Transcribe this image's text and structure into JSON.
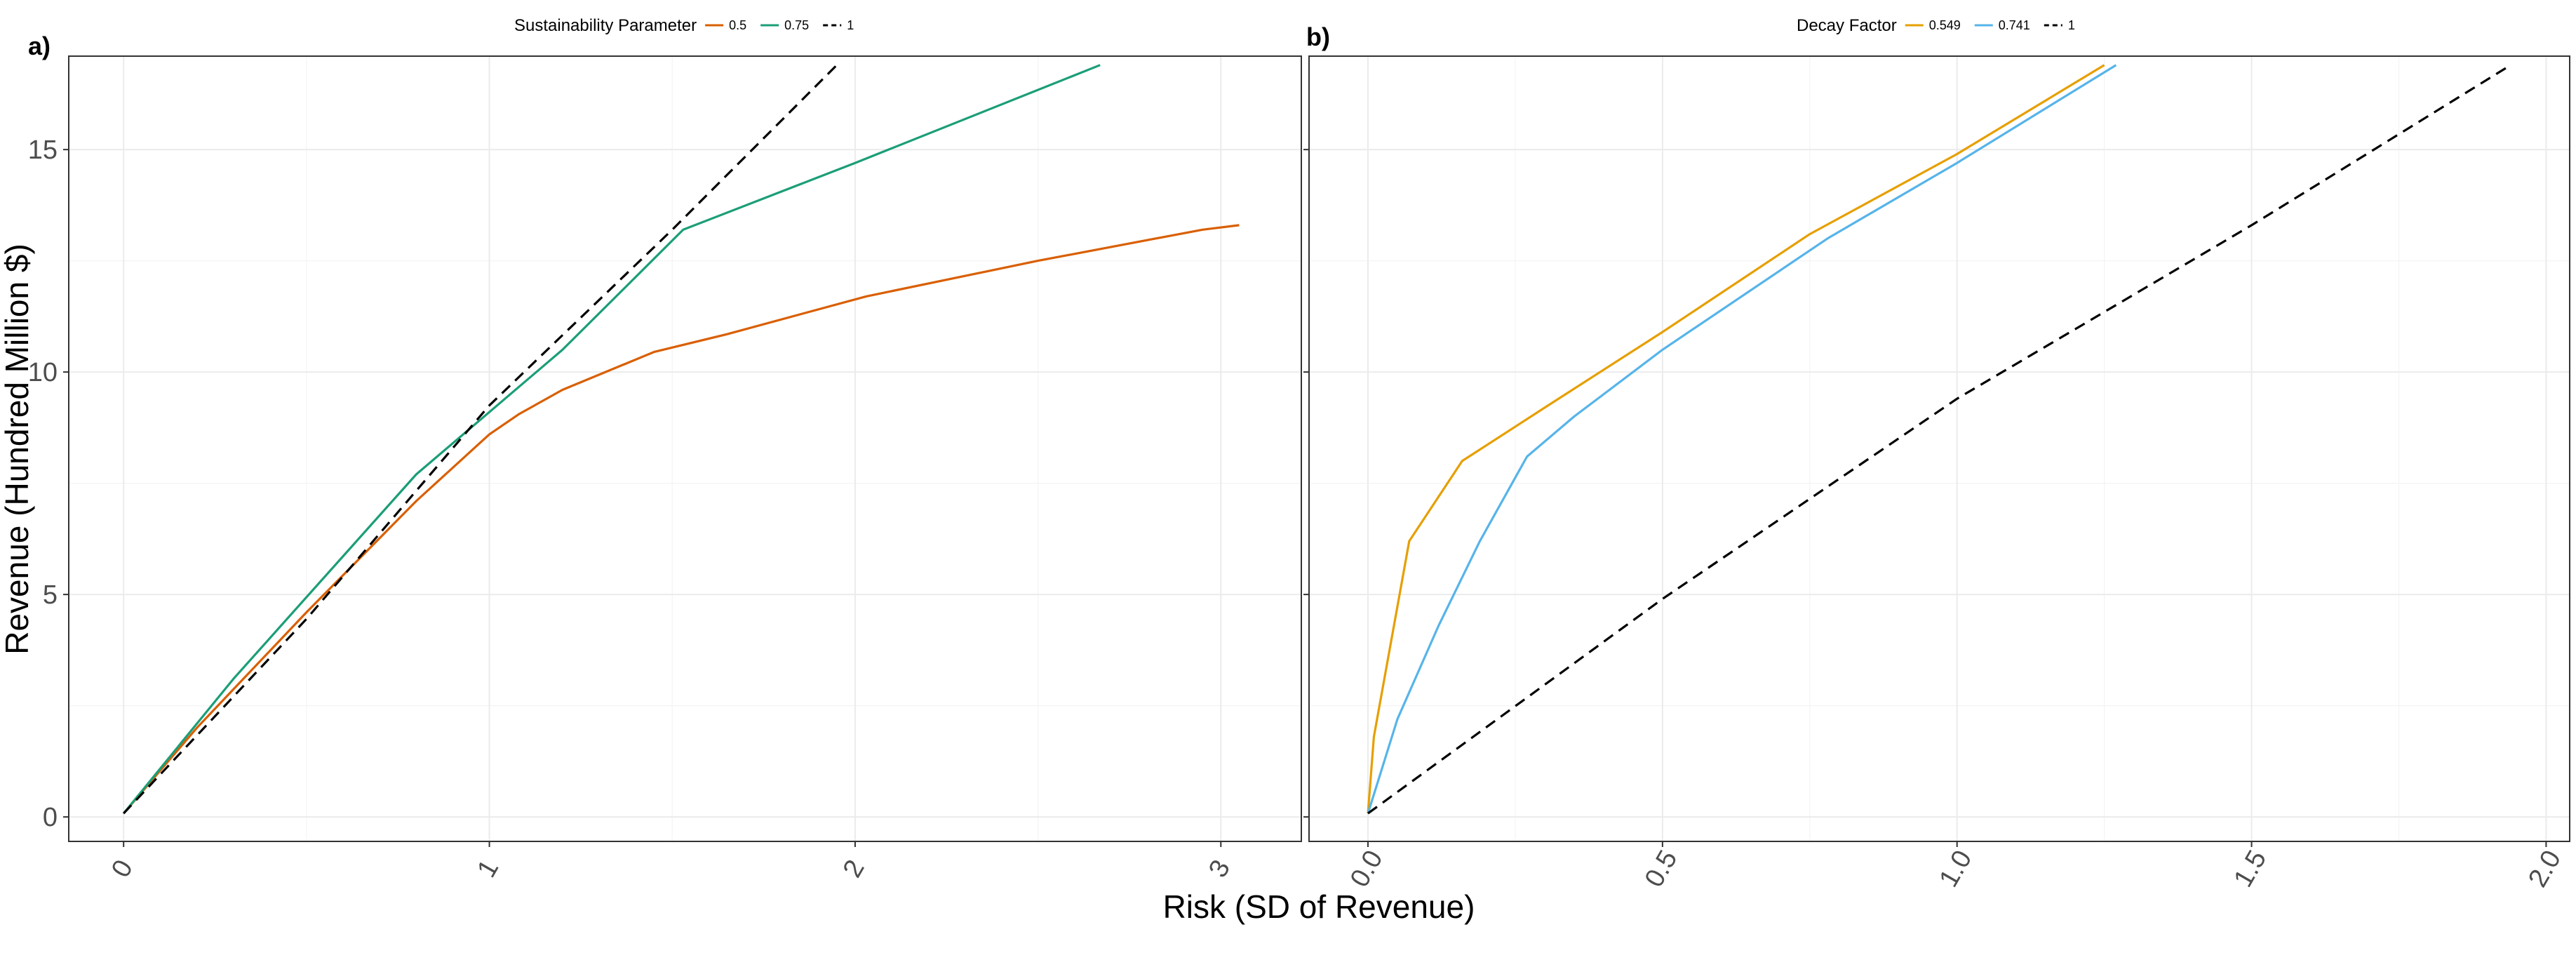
{
  "figure": {
    "x_title": "Risk (SD of Revenue)",
    "y_title": "Revenue (Hundred Million $)"
  },
  "chart_data": [
    {
      "type": "line",
      "tag": "a)",
      "legend_title": "Sustainability Parameter",
      "legend_position": "top",
      "xlabel": "Risk (SD of Revenue)",
      "ylabel": "Revenue (Hundred Million $)",
      "xlim": [
        -0.15,
        3.22
      ],
      "ylim": [
        -0.55,
        17.1
      ],
      "x_ticks": [
        0,
        1,
        2,
        3
      ],
      "x_tick_labels": [
        "0",
        "1",
        "2",
        "3"
      ],
      "y_ticks": [
        0,
        5,
        10,
        15
      ],
      "y_tick_labels": [
        "0",
        "5",
        "10",
        "15"
      ],
      "grid": true,
      "series": [
        {
          "name": "0.5",
          "color": "#d95f02",
          "dash": "solid",
          "points": [
            [
              0,
              0.08
            ],
            [
              0.2,
              2.0
            ],
            [
              0.5,
              4.6
            ],
            [
              0.8,
              7.1
            ],
            [
              1.0,
              8.6
            ],
            [
              1.08,
              9.05
            ],
            [
              1.2,
              9.6
            ],
            [
              1.45,
              10.45
            ],
            [
              1.65,
              10.85
            ],
            [
              2.03,
              11.7
            ],
            [
              2.5,
              12.5
            ],
            [
              2.95,
              13.2
            ],
            [
              3.05,
              13.3
            ]
          ]
        },
        {
          "name": "0.75",
          "color": "#1b9e77",
          "dash": "solid",
          "points": [
            [
              0,
              0.08
            ],
            [
              0.3,
              3.1
            ],
            [
              0.8,
              7.7
            ],
            [
              1.2,
              10.5
            ],
            [
              1.53,
              13.2
            ],
            [
              2.0,
              14.7
            ],
            [
              2.67,
              16.9
            ]
          ]
        },
        {
          "name": "1",
          "color": "#000000",
          "dash": "dashed",
          "points": [
            [
              0,
              0.08
            ],
            [
              0.5,
              4.45
            ],
            [
              1.0,
              9.25
            ],
            [
              1.5,
              13.2
            ],
            [
              1.95,
              16.9
            ]
          ]
        }
      ]
    },
    {
      "type": "line",
      "tag": "b)",
      "legend_title": "Decay Factor",
      "legend_position": "top",
      "xlabel": "Risk (SD of Revenue)",
      "ylabel": "Revenue (Hundred Million $)",
      "xlim": [
        -0.1,
        2.04
      ],
      "ylim": [
        -0.55,
        17.1
      ],
      "x_ticks": [
        0,
        0.5,
        1,
        1.5,
        2
      ],
      "x_tick_labels": [
        "0.0",
        "0.5",
        "1.0",
        "1.5",
        "2.0"
      ],
      "y_ticks": [
        0,
        5,
        10,
        15
      ],
      "y_tick_labels": [],
      "grid": true,
      "series": [
        {
          "name": "0.549",
          "color": "#e69f00",
          "dash": "solid",
          "points": [
            [
              0,
              0.08
            ],
            [
              0.01,
              1.8
            ],
            [
              0.07,
              6.2
            ],
            [
              0.16,
              8.0
            ],
            [
              0.3,
              9.2
            ],
            [
              0.5,
              10.9
            ],
            [
              0.75,
              13.1
            ],
            [
              1.0,
              14.9
            ],
            [
              1.25,
              16.9
            ]
          ]
        },
        {
          "name": "0.741",
          "color": "#56b4e9",
          "dash": "solid",
          "points": [
            [
              0,
              0.08
            ],
            [
              0.05,
              2.2
            ],
            [
              0.12,
              4.3
            ],
            [
              0.19,
              6.2
            ],
            [
              0.27,
              8.1
            ],
            [
              0.35,
              9.0
            ],
            [
              0.5,
              10.5
            ],
            [
              0.78,
              13.0
            ],
            [
              1.0,
              14.7
            ],
            [
              1.27,
              16.9
            ]
          ]
        },
        {
          "name": "1",
          "color": "#000000",
          "dash": "dashed",
          "points": [
            [
              0,
              0.08
            ],
            [
              0.5,
              4.9
            ],
            [
              1.0,
              9.4
            ],
            [
              1.5,
              13.3
            ],
            [
              1.94,
              16.9
            ]
          ]
        }
      ]
    }
  ]
}
